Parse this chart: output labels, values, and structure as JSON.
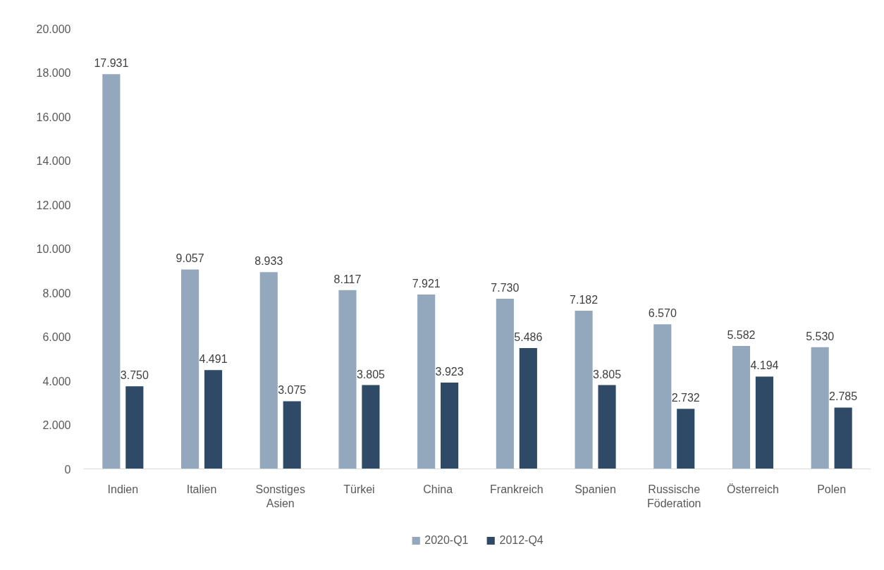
{
  "chart_data": {
    "type": "bar",
    "categories": [
      "Indien",
      "Italien",
      "Sonstiges Asien",
      "Türkei",
      "China",
      "Frankreich",
      "Spanien",
      "Russische Föderation",
      "Österreich",
      "Polen"
    ],
    "series": [
      {
        "name": "2020-Q1",
        "color": "#93a8bc",
        "values": [
          17931,
          9057,
          8933,
          8117,
          7921,
          7730,
          7182,
          6570,
          5582,
          5530
        ],
        "value_labels": [
          "17.931",
          "9.057",
          "8.933",
          "8.117",
          "7.921",
          "7.730",
          "7.182",
          "6.570",
          "5.582",
          "5.530"
        ]
      },
      {
        "name": "2012-Q4",
        "color": "#2e4a66",
        "values": [
          3750,
          4491,
          3075,
          3805,
          3923,
          5486,
          3805,
          2732,
          4194,
          2785
        ],
        "value_labels": [
          "3.750",
          "4.491",
          "3.075",
          "3.805",
          "3.923",
          "5.486",
          "3.805",
          "2.732",
          "4.194",
          "2.785"
        ]
      }
    ],
    "ylim": [
      0,
      20000
    ],
    "yticks": [
      {
        "value": 0,
        "label": "0"
      },
      {
        "value": 2000,
        "label": "2.000"
      },
      {
        "value": 4000,
        "label": "4.000"
      },
      {
        "value": 6000,
        "label": "6.000"
      },
      {
        "value": 8000,
        "label": "8.000"
      },
      {
        "value": 10000,
        "label": "10.000"
      },
      {
        "value": 12000,
        "label": "12.000"
      },
      {
        "value": 14000,
        "label": "14.000"
      },
      {
        "value": 16000,
        "label": "16.000"
      },
      {
        "value": 18000,
        "label": "18.000"
      },
      {
        "value": 20000,
        "label": "20.000"
      }
    ],
    "grid": false,
    "legend": "bottom"
  }
}
